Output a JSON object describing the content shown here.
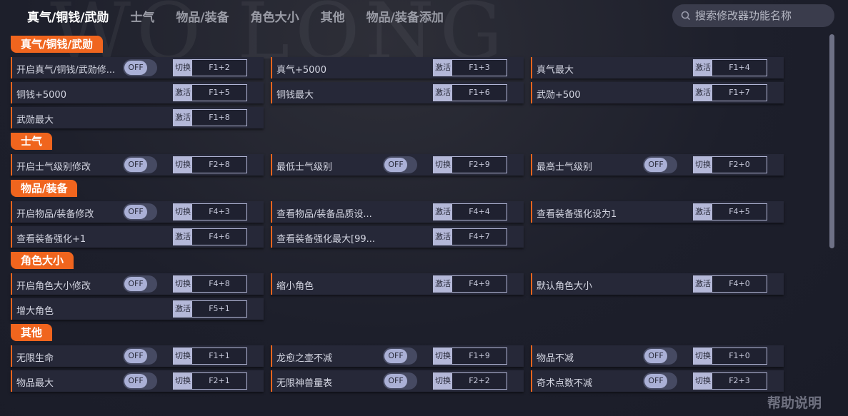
{
  "tabs": [
    "真气/铜钱/武勋",
    "士气",
    "物品/装备",
    "角色大小",
    "其他",
    "物品/装备添加"
  ],
  "active_tab": 0,
  "search": {
    "placeholder": "搜索修改器功能名称"
  },
  "help": "帮助说明",
  "watermark": "WO LONG",
  "colors": {
    "accent": "#f0651e",
    "background": "#1c1e2b",
    "row": "#262838"
  },
  "sections": [
    {
      "title": "真气/铜钱/武勋",
      "items": [
        {
          "name": "开启真气/铜钱/武勋修...",
          "toggle": "OFF",
          "action": "切换",
          "key": "F1+2"
        },
        {
          "name": "真气+5000",
          "action": "激活",
          "key": "F1+3"
        },
        {
          "name": "真气最大",
          "action": "激活",
          "key": "F1+4"
        },
        {
          "name": "铜钱+5000",
          "action": "激活",
          "key": "F1+5"
        },
        {
          "name": "铜钱最大",
          "action": "激活",
          "key": "F1+6"
        },
        {
          "name": "武勋+500",
          "action": "激活",
          "key": "F1+7"
        },
        {
          "name": "武勋最大",
          "action": "激活",
          "key": "F1+8"
        }
      ]
    },
    {
      "title": "士气",
      "items": [
        {
          "name": "开启士气级别修改",
          "toggle": "OFF",
          "action": "切换",
          "key": "F2+8"
        },
        {
          "name": "最低士气级别",
          "toggle": "OFF",
          "action": "切换",
          "key": "F2+9"
        },
        {
          "name": "最高士气级别",
          "toggle": "OFF",
          "action": "切换",
          "key": "F2+0"
        }
      ]
    },
    {
      "title": "物品/装备",
      "items": [
        {
          "name": "开启物品/装备修改",
          "toggle": "OFF",
          "action": "切换",
          "key": "F4+3"
        },
        {
          "name": "查看物品/装备品质设...",
          "action": "激活",
          "key": "F4+4"
        },
        {
          "name": "查看装备强化设为1",
          "action": "激活",
          "key": "F4+5"
        },
        {
          "name": "查看装备强化+1",
          "action": "激活",
          "key": "F4+6"
        },
        {
          "name": "查看装备强化最大[99...",
          "action": "激活",
          "key": "F4+7"
        }
      ]
    },
    {
      "title": "角色大小",
      "items": [
        {
          "name": "开启角色大小修改",
          "toggle": "OFF",
          "action": "切换",
          "key": "F4+8"
        },
        {
          "name": "缩小角色",
          "action": "激活",
          "key": "F4+9"
        },
        {
          "name": "默认角色大小",
          "action": "激活",
          "key": "F4+0"
        },
        {
          "name": "增大角色",
          "action": "激活",
          "key": "F5+1"
        }
      ]
    },
    {
      "title": "其他",
      "items": [
        {
          "name": "无限生命",
          "toggle": "OFF",
          "action": "切换",
          "key": "F1+1"
        },
        {
          "name": "龙愈之壶不减",
          "toggle": "OFF",
          "action": "切换",
          "key": "F1+9"
        },
        {
          "name": "物品不减",
          "toggle": "OFF",
          "action": "切换",
          "key": "F1+0"
        },
        {
          "name": "物品最大",
          "toggle": "OFF",
          "action": "切换",
          "key": "F2+1"
        },
        {
          "name": "无限神兽量表",
          "toggle": "OFF",
          "action": "切换",
          "key": "F2+2"
        },
        {
          "name": "奇术点数不减",
          "toggle": "OFF",
          "action": "切换",
          "key": "F2+3"
        }
      ]
    }
  ]
}
